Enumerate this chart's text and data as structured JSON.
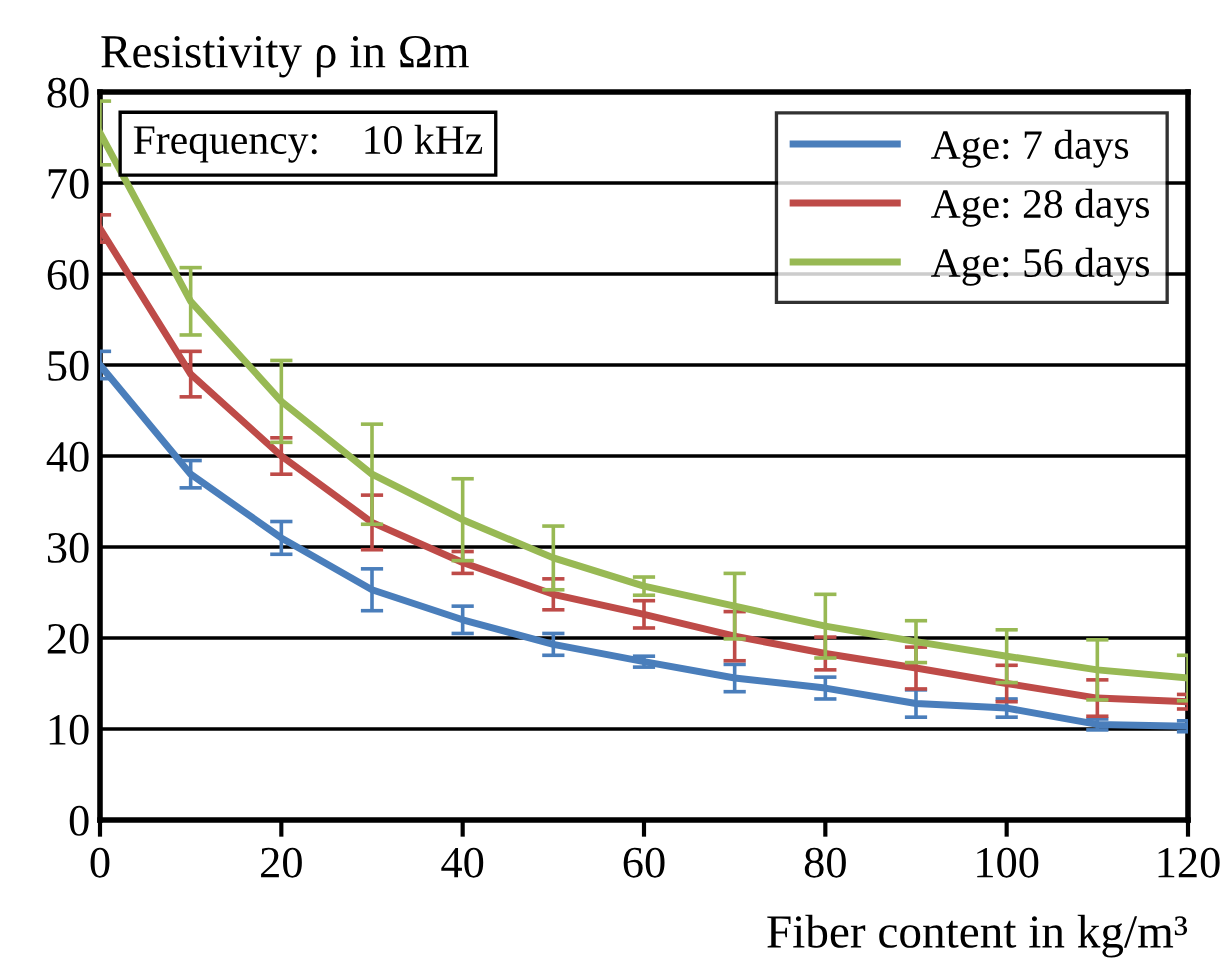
{
  "chart_data": {
    "type": "line",
    "ylabel": "Resistivity ρ in Ωm",
    "xlabel": "Fiber content in kg/m³",
    "x": [
      0,
      10,
      20,
      30,
      40,
      50,
      60,
      70,
      80,
      90,
      100,
      110,
      120
    ],
    "series": [
      {
        "name": "Age: 7 days",
        "color": "#4a7ebb",
        "values": [
          50,
          38,
          31,
          25.3,
          22,
          19.3,
          17.4,
          15.6,
          14.5,
          12.8,
          12.3,
          10.5,
          10.3
        ],
        "errors": [
          1.5,
          1.5,
          1.8,
          2.3,
          1.5,
          1.2,
          0.6,
          1.5,
          1.2,
          1.5,
          1,
          0.6,
          0.6
        ]
      },
      {
        "name": "Age: 28 days",
        "color": "#be4b48",
        "values": [
          65,
          49,
          40,
          32.7,
          28.3,
          24.8,
          22.6,
          20.2,
          18.3,
          16.7,
          15,
          13.4,
          13
        ],
        "errors": [
          1.5,
          2.5,
          2,
          3,
          1.2,
          1.7,
          1.5,
          2.7,
          1.8,
          2.3,
          2,
          2,
          0.8
        ]
      },
      {
        "name": "Age: 56 days",
        "color": "#98b954",
        "values": [
          75.5,
          57,
          46,
          38,
          33,
          28.8,
          25.7,
          23.5,
          21.3,
          19.6,
          18,
          16.5,
          15.6
        ],
        "errors": [
          3.5,
          3.7,
          4.5,
          5.5,
          4.5,
          3.5,
          1,
          3.6,
          3.5,
          2.3,
          2.9,
          3.3,
          2.5
        ]
      }
    ],
    "xlim": [
      0,
      120
    ],
    "ylim": [
      0,
      80
    ],
    "xticks": [
      0,
      20,
      40,
      60,
      80,
      100,
      120
    ],
    "yticks": [
      0,
      10,
      20,
      30,
      40,
      50,
      60,
      70,
      80
    ],
    "grid": "y",
    "legend": "top right",
    "marker": "none",
    "line_style": "solid",
    "annotations": [
      "Frequency:    10 kHz"
    ]
  }
}
